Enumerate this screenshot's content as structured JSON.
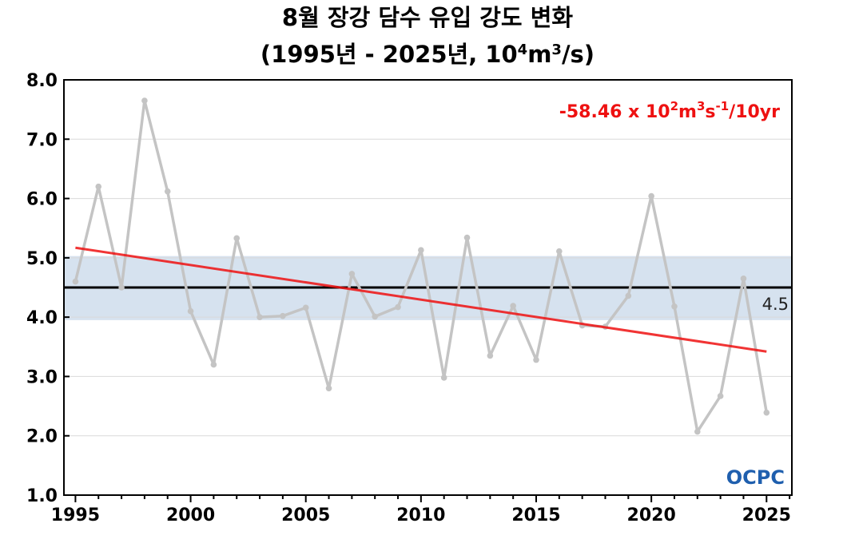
{
  "chart_data": {
    "type": "line",
    "title_line1": "8월 장강 담수 유입 강도 변화",
    "title_line2_pre": "(1995년 - 2025년, 10",
    "title_line2_sup1": "4",
    "title_line2_mid": "m",
    "title_line2_sup2": "3",
    "title_line2_post": "/s)",
    "xlim": [
      1994.5,
      2026.1
    ],
    "ylim": [
      1.0,
      8.0
    ],
    "x_ticks": [
      1995,
      2000,
      2005,
      2010,
      2015,
      2020,
      2025
    ],
    "y_ticks": [
      1.0,
      2.0,
      3.0,
      4.0,
      5.0,
      6.0,
      7.0,
      8.0
    ],
    "y_tick_labels": [
      "1.0",
      "2.0",
      "3.0",
      "4.0",
      "5.0",
      "6.0",
      "7.0",
      "8.0"
    ],
    "grid": true,
    "series": [
      {
        "x": [
          1995,
          1996,
          1997,
          1998,
          1999,
          2000,
          2001,
          2002,
          2003,
          2004,
          2005,
          2006,
          2007,
          2008,
          2009,
          2010,
          2011,
          2012,
          2013,
          2014,
          2015,
          2016,
          2017,
          2018,
          2019,
          2020,
          2021,
          2022,
          2023,
          2024,
          2025
        ],
        "values": [
          4.6,
          6.2,
          4.5,
          7.65,
          6.12,
          4.1,
          3.2,
          5.33,
          4.0,
          4.02,
          4.16,
          2.8,
          4.73,
          4.01,
          4.17,
          5.13,
          2.98,
          5.34,
          3.35,
          4.19,
          3.28,
          5.11,
          3.86,
          3.84,
          4.36,
          6.04,
          4.18,
          2.07,
          2.67,
          4.65,
          2.39
        ],
        "color": "#c4c4c4"
      }
    ],
    "mean": 4.5,
    "mean_label": "4.5",
    "mean_band": [
      3.95,
      5.03
    ],
    "band_color": "#d6e2ef",
    "trend": {
      "start": [
        1995,
        5.17
      ],
      "end": [
        2025,
        3.42
      ],
      "color": "#ee1111",
      "label_pre": "-58.46 x 10",
      "label_sup1": "2",
      "label_mid": "m",
      "label_sup2": "3",
      "label_mid2": "s",
      "label_sup3": "-1",
      "label_post": "/10yr"
    },
    "logo_text": "OCPC"
  }
}
